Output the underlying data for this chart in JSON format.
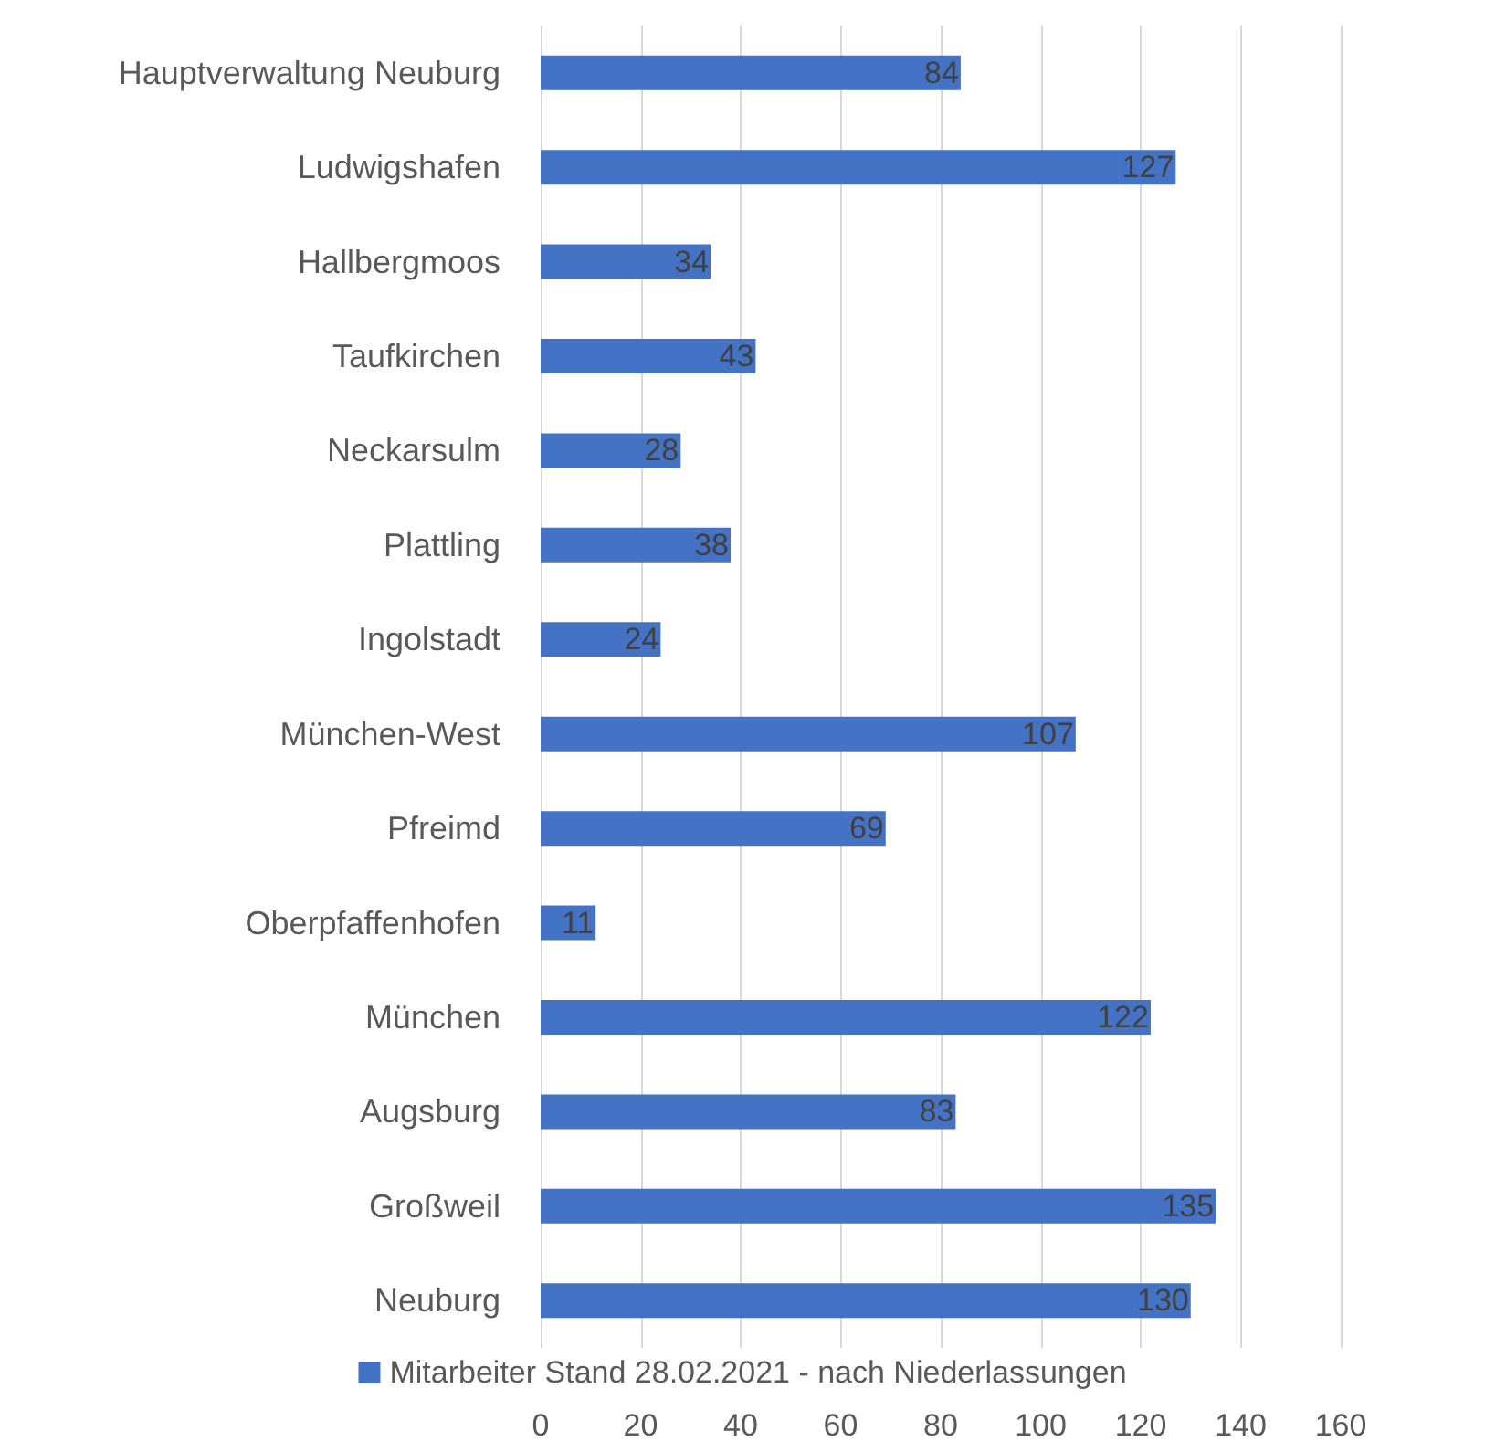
{
  "chart_data": {
    "type": "bar",
    "orientation": "horizontal",
    "categories": [
      "Hauptverwaltung Neuburg",
      "Ludwigshafen",
      "Hallbergmoos",
      "Taufkirchen",
      "Neckarsulm",
      "Plattling",
      "Ingolstadt",
      "München-West",
      "Pfreimd",
      "Oberpfaffenhofen",
      "München",
      "Augsburg",
      "Großweil",
      "Neuburg"
    ],
    "series": [
      {
        "name": "Mitarbeiter Stand 28.02.2021 - nach Niederlassungen",
        "color": "#4472c4",
        "values": [
          84,
          127,
          34,
          43,
          28,
          38,
          24,
          107,
          69,
          11,
          122,
          83,
          135,
          130
        ]
      }
    ],
    "xlim": [
      0,
      160
    ],
    "xticks": [
      0,
      20,
      40,
      60,
      80,
      100,
      120,
      140,
      160
    ],
    "grid": "x",
    "legend": "bottom",
    "data_labels": true
  }
}
